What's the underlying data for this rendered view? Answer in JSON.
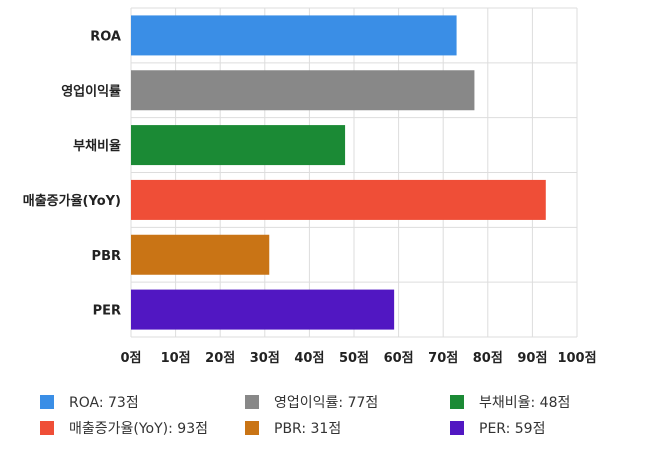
{
  "chart_data": {
    "type": "bar",
    "orientation": "horizontal",
    "categories": [
      "ROA",
      "영업이익률",
      "부채비율",
      "매출증가율(YoY)",
      "PBR",
      "PER"
    ],
    "values": [
      73,
      77,
      48,
      93,
      31,
      59
    ],
    "colors": [
      "#3a8ee6",
      "#888888",
      "#1b8a35",
      "#ef4e37",
      "#c97415",
      "#5117c2"
    ],
    "xlim": [
      0,
      100
    ],
    "x_ticks": [
      0,
      10,
      20,
      30,
      40,
      50,
      60,
      70,
      80,
      90,
      100
    ],
    "tick_suffix": "점",
    "grid": true,
    "legend": {
      "placement": "bottom",
      "items": [
        {
          "label": "ROA: 73점",
          "color": "#3a8ee6"
        },
        {
          "label": "영업이익률: 77점",
          "color": "#888888"
        },
        {
          "label": "부채비율: 48점",
          "color": "#1b8a35"
        },
        {
          "label": "매출증가율(YoY): 93점",
          "color": "#ef4e37"
        },
        {
          "label": "PBR: 31점",
          "color": "#c97415"
        },
        {
          "label": "PER: 59점",
          "color": "#5117c2"
        }
      ]
    }
  }
}
